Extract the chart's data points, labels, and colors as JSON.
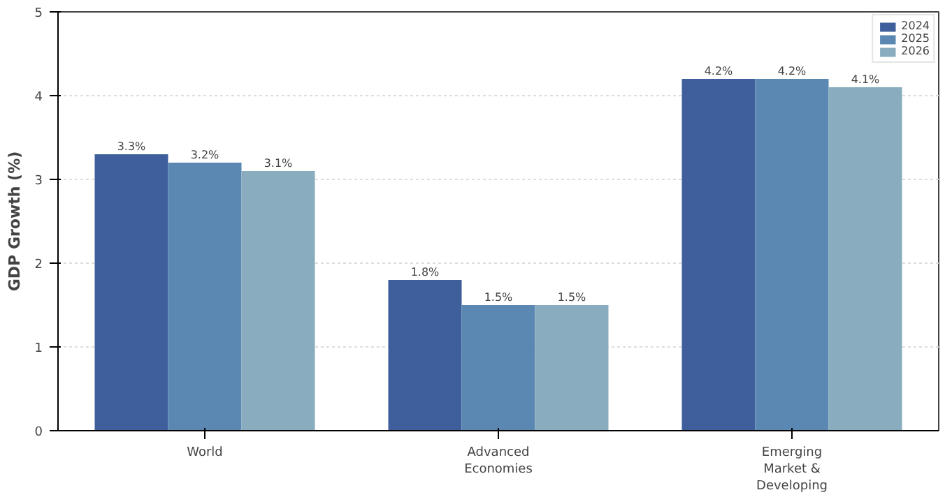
{
  "chart_data": {
    "type": "bar",
    "ylabel": "GDP Growth (%)",
    "categories": [
      "World",
      "Advanced\nEconomies",
      "Emerging\nMarket &\nDeveloping"
    ],
    "series": [
      {
        "name": "2024",
        "color": "#3f5f9c",
        "values": [
          3.3,
          1.8,
          4.2
        ],
        "value_labels": [
          "3.3%",
          "1.8%",
          "4.2%"
        ]
      },
      {
        "name": "2025",
        "color": "#5b88b2",
        "values": [
          3.2,
          1.5,
          4.2
        ],
        "value_labels": [
          "3.2%",
          "1.5%",
          "4.2%"
        ]
      },
      {
        "name": "2026",
        "color": "#89adbe",
        "values": [
          3.1,
          1.5,
          4.1
        ],
        "value_labels": [
          "3.1%",
          "1.5%",
          "4.1%"
        ]
      }
    ],
    "ylim": [
      0,
      5
    ],
    "yticks": [
      0,
      1,
      2,
      3,
      4,
      5
    ],
    "grid": "y",
    "legend": "top right"
  }
}
